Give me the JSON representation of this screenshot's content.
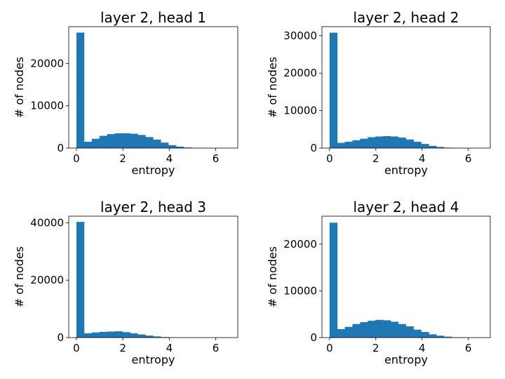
{
  "chart_data": [
    {
      "type": "bar",
      "title": "layer 2, head 1",
      "xlabel": "entropy",
      "ylabel": "# of nodes",
      "xlim": [
        -0.33,
        6.95
      ],
      "ylim": [
        0,
        28700
      ],
      "xticks": [
        0,
        2,
        4,
        6
      ],
      "yticks": [
        0,
        10000,
        20000
      ],
      "bin_edges": [
        0.0,
        0.33,
        0.66,
        0.99,
        1.32,
        1.65,
        1.98,
        2.31,
        2.64,
        2.97,
        3.3,
        3.63,
        3.96,
        4.29,
        4.62,
        4.95,
        5.28,
        5.61,
        5.94,
        6.27,
        6.6
      ],
      "values": [
        27300,
        1500,
        2200,
        2900,
        3300,
        3500,
        3500,
        3400,
        3100,
        2600,
        2000,
        1300,
        700,
        350,
        150,
        60,
        20,
        8,
        3,
        1
      ]
    },
    {
      "type": "bar",
      "title": "layer 2, head 2",
      "xlabel": "entropy",
      "ylabel": "# of nodes",
      "xlim": [
        -0.33,
        6.95
      ],
      "ylim": [
        0,
        32400
      ],
      "xticks": [
        0,
        2,
        4,
        6
      ],
      "yticks": [
        0,
        10000,
        20000,
        30000
      ],
      "bin_edges": [
        0.0,
        0.33,
        0.66,
        0.99,
        1.32,
        1.65,
        1.98,
        2.31,
        2.64,
        2.97,
        3.3,
        3.63,
        3.96,
        4.29,
        4.62,
        4.95,
        5.28,
        5.61,
        5.94,
        6.27,
        6.6
      ],
      "values": [
        30800,
        1400,
        1700,
        2100,
        2500,
        2900,
        3100,
        3200,
        3100,
        2800,
        2300,
        1700,
        1100,
        600,
        300,
        120,
        40,
        12,
        4,
        1
      ]
    },
    {
      "type": "bar",
      "title": "layer 2, head 3",
      "xlabel": "entropy",
      "ylabel": "# of nodes",
      "xlim": [
        -0.33,
        6.95
      ],
      "ylim": [
        0,
        42300
      ],
      "xticks": [
        0,
        2,
        4,
        6
      ],
      "yticks": [
        0,
        20000,
        40000
      ],
      "bin_edges": [
        0.0,
        0.33,
        0.66,
        0.99,
        1.32,
        1.65,
        1.98,
        2.31,
        2.64,
        2.97,
        3.3,
        3.63,
        3.96,
        4.29,
        4.62,
        4.95,
        5.28,
        5.61,
        5.94,
        6.27,
        6.6
      ],
      "values": [
        40300,
        1500,
        1800,
        2000,
        2100,
        2200,
        1900,
        1500,
        1100,
        700,
        400,
        200,
        90,
        40,
        15,
        6,
        2,
        1,
        0,
        0
      ]
    },
    {
      "type": "bar",
      "title": "layer 2, head 4",
      "xlabel": "entropy",
      "ylabel": "# of nodes",
      "xlim": [
        -0.33,
        6.95
      ],
      "ylim": [
        0,
        26000
      ],
      "xticks": [
        0,
        2,
        4,
        6
      ],
      "yticks": [
        0,
        10000,
        20000
      ],
      "bin_edges": [
        0.0,
        0.33,
        0.66,
        0.99,
        1.32,
        1.65,
        1.98,
        2.31,
        2.64,
        2.97,
        3.3,
        3.63,
        3.96,
        4.29,
        4.62,
        4.95,
        5.28,
        5.61,
        5.94,
        6.27,
        6.6
      ],
      "values": [
        24600,
        1800,
        2300,
        2900,
        3300,
        3600,
        3800,
        3700,
        3400,
        2900,
        2400,
        1700,
        1200,
        700,
        400,
        200,
        80,
        30,
        10,
        3
      ]
    }
  ]
}
